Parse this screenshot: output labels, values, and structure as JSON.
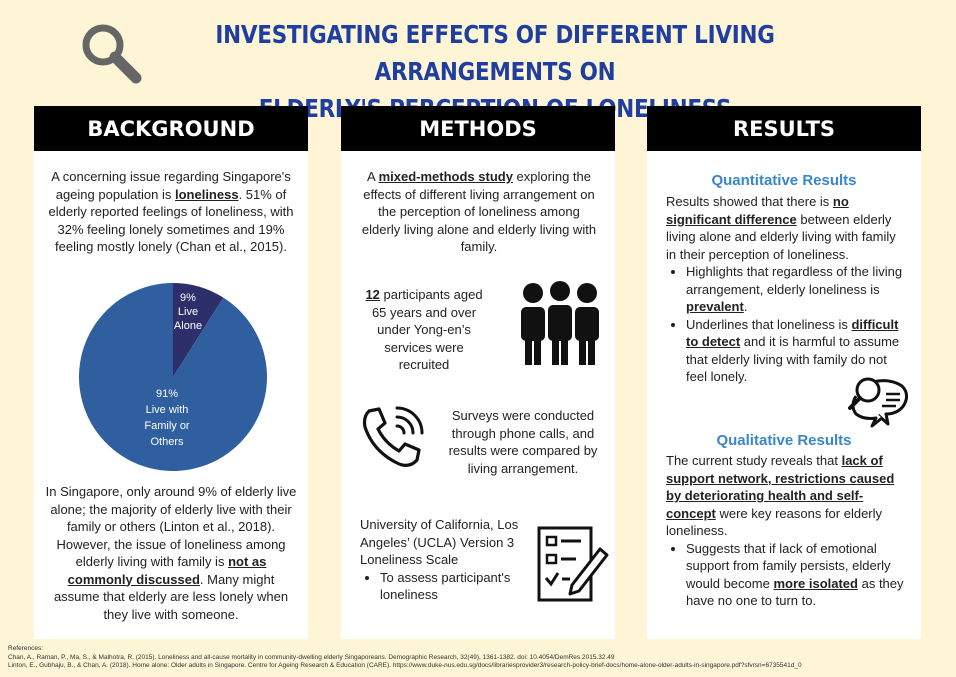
{
  "title": {
    "line1": "INVESTIGATING EFFECTS OF DIFFERENT LIVING ARRANGEMENTS ON",
    "line2": "ELDERLY'S PERCEPTION OF LONELINESS"
  },
  "headers": {
    "background": "BACKGROUND",
    "methods": "METHODS",
    "results": "RESULTS"
  },
  "background": {
    "intro": [
      "A concerning issue regarding Singapore's ageing population is ",
      "loneliness",
      ".  51% of elderly reported feelings of loneliness, with  32% feeling lonely sometimes and 19% feeling mostly lonely (Chan et al., 2015)."
    ],
    "pie": {
      "slices": [
        {
          "pct_label": "9%",
          "label1": "Live",
          "label2": "Alone",
          "value": 9,
          "color": "#2d2f6b"
        },
        {
          "pct_label": "91%",
          "label1": "Live with",
          "label2": "Family or",
          "label3": "Others",
          "value": 91,
          "color": "#2f5f9e"
        }
      ]
    },
    "para2": [
      "In Singapore, only around 9% of elderly live alone; the majority of elderly live with their family or others (Linton et al., 2018). However, the issue of loneliness among elderly living with family is ",
      "not as commonly discussed",
      ".  Many might assume that elderly are less lonely when they live with someone."
    ]
  },
  "methods": {
    "intro": [
      "A ",
      "mixed-methods study",
      " exploring the effects of different living arrangement on the perception of loneliness among elderly living alone and elderly living with family."
    ],
    "participants": [
      "12",
      " participants aged 65 years and over under Yong-en’s services were recruited"
    ],
    "surveys": "Surveys were conducted through phone calls, and results were compared by living arrangement.",
    "scale": "University of California, Los Angeles’ (UCLA) Version 3 Loneliness Scale",
    "scale_bullet": "To assess participant's loneliness",
    "icons": {
      "people": "people-group-icon",
      "phone": "phone-call-icon",
      "checklist": "checklist-icon"
    }
  },
  "results": {
    "quant_title": "Quantitative Results",
    "quant": [
      "Results showed that there is ",
      "no significant difference",
      " between elderly living alone and elderly living with family in their perception of loneliness."
    ],
    "bullet1": [
      "Highlights that regardless of the living arrangement, elderly loneliness is ",
      "prevalent",
      "."
    ],
    "bullet2": [
      "Underlines that loneliness is ",
      "difficult to detect",
      " and it is harmful to assume that elderly living with family do not feel lonely."
    ],
    "qual_title": "Qualitative Results",
    "qual": [
      "The current study reveals that ",
      "lack of support network, restrictions caused by deteriorating health and self-concept",
      " were key reasons for elderly loneliness."
    ],
    "bullet3": [
      "Suggests that if lack of emotional support from family persists, elderly would become ",
      "more isolated",
      " as they have no one to turn to."
    ],
    "icons": {
      "chat": "chat-search-icon"
    }
  },
  "references": {
    "label": "References:",
    "ref1": "Chan, A., Raman, P., Ma, S., & Malhotra, R. (2015). Loneliness and all-cause mortality in community-dwelling elderly Singaporeans. Demographic Research, 32(49), 1361-1382. doi: 10.4054/DemRes.2015.32.49",
    "ref2": "Linton, E., Gubhaju, B., & Chan, A. (2018). Home alone: Older adults in Singapore. Centre for Ageing Research & Education (CARE). https://www.duke-nus.edu.sg/docs/librariesprovider3/research-policy-brief-docs/home-alone-older-adults-in-singapore.pdf?sfvrsn=6735541d_0"
  },
  "icons": {
    "title": "magnifier-icon"
  }
}
